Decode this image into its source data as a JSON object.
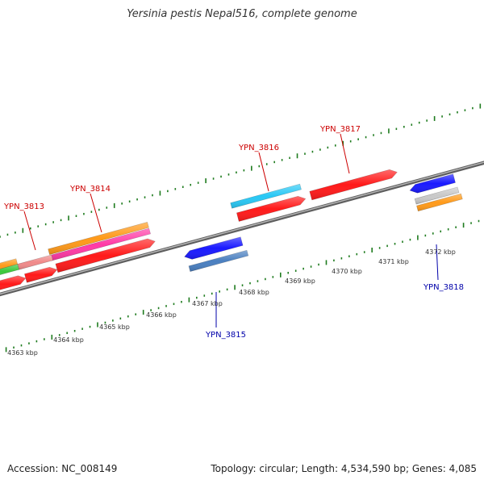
{
  "title": "Yersinia pestis Nepal516, complete genome",
  "footer": {
    "accession": "Accession: NC_008149",
    "summary": "Topology: circular; Length: 4,534,590 bp; Genes: 4,085"
  },
  "colors": {
    "forward_label": "#cc0000",
    "reverse_label": "#0000aa",
    "backbone": "#8a8a8a",
    "tick": "#1e7b1e",
    "red": "#ff1a1a",
    "blue": "#1a1aff",
    "cyan": "#29c8f5",
    "steelblue": "#4a7fc0",
    "orange": "#ff9a1a",
    "pink": "#ff3aa6",
    "salmon": "#f08a8a",
    "green": "#3cc83c",
    "silver": "#c9c9c9"
  },
  "scale_labels": [
    {
      "text": "4363 kbp",
      "kbp": 4363
    },
    {
      "text": "4364 kbp",
      "kbp": 4364
    },
    {
      "text": "4365 kbp",
      "kbp": 4365
    },
    {
      "text": "4366 kbp",
      "kbp": 4366
    },
    {
      "text": "4367 kbp",
      "kbp": 4367
    },
    {
      "text": "4368 kbp",
      "kbp": 4368
    },
    {
      "text": "4369 kbp",
      "kbp": 4369
    },
    {
      "text": "4370 kbp",
      "kbp": 4370
    },
    {
      "text": "4371 kbp",
      "kbp": 4371
    },
    {
      "text": "4372 kbp",
      "kbp": 4372
    }
  ],
  "gene_labels": [
    {
      "text": "YPN_3813",
      "strand": "forward"
    },
    {
      "text": "YPN_3814",
      "strand": "forward"
    },
    {
      "text": "YPN_3815",
      "strand": "reverse"
    },
    {
      "text": "YPN_3816",
      "strand": "forward"
    },
    {
      "text": "YPN_3817",
      "strand": "forward"
    },
    {
      "text": "YPN_3818",
      "strand": "reverse"
    }
  ],
  "features": [
    {
      "strand": "forward",
      "color_key": "red",
      "direction": "right"
    },
    {
      "strand": "forward",
      "color_key": "red",
      "direction": "right"
    },
    {
      "strand": "forward",
      "color_key": "red",
      "direction": "right"
    },
    {
      "strand": "forward",
      "color_key": "red",
      "direction": "right"
    },
    {
      "strand": "forward",
      "color_key": "red",
      "direction": "right"
    },
    {
      "strand": "forward",
      "color_key": "cyan",
      "direction": "none"
    },
    {
      "strand": "forward",
      "color_key": "pink",
      "direction": "none"
    },
    {
      "strand": "forward",
      "color_key": "orange",
      "direction": "none"
    },
    {
      "strand": "forward",
      "color_key": "salmon",
      "direction": "none"
    },
    {
      "strand": "forward",
      "color_key": "green",
      "direction": "none"
    },
    {
      "strand": "forward",
      "color_key": "orange",
      "direction": "none"
    },
    {
      "strand": "reverse",
      "color_key": "blue",
      "direction": "left"
    },
    {
      "strand": "reverse",
      "color_key": "blue",
      "direction": "left"
    },
    {
      "strand": "reverse",
      "color_key": "steelblue",
      "direction": "none"
    },
    {
      "strand": "reverse",
      "color_key": "silver",
      "direction": "none"
    },
    {
      "strand": "reverse",
      "color_key": "orange",
      "direction": "none"
    }
  ]
}
